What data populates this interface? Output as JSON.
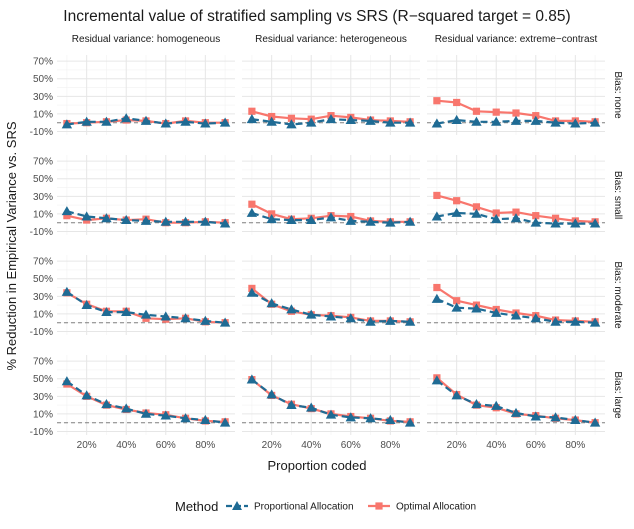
{
  "chart_data": {
    "type": "line",
    "title": "Incremental value of stratified sampling vs SRS (R−squared target = 0.85)",
    "xlabel": "Proportion coded",
    "ylabel": "% Reduction in Empirical Variance vs. SRS",
    "x": [
      0.1,
      0.2,
      0.3,
      0.4,
      0.5,
      0.6,
      0.7,
      0.8,
      0.9
    ],
    "x_ticks": [
      {
        "value": 0.2,
        "label": "20%"
      },
      {
        "value": 0.4,
        "label": "40%"
      },
      {
        "value": 0.6,
        "label": "60%"
      },
      {
        "value": 0.8,
        "label": "80%"
      }
    ],
    "y_ticks": [
      {
        "value": -10,
        "label": "-10%"
      },
      {
        "value": 10,
        "label": "10%"
      },
      {
        "value": 30,
        "label": "30%"
      },
      {
        "value": 50,
        "label": "50%"
      },
      {
        "value": 70,
        "label": "70%"
      }
    ],
    "xlim": [
      0.05,
      0.95
    ],
    "ylim": [
      -14,
      77
    ],
    "reference_line": 0,
    "grid": true,
    "column_strips": [
      "Residual variance: homogeneous",
      "Residual variance: heterogeneous",
      "Residual variance: extreme−contrast"
    ],
    "row_strips": [
      "Bias: none",
      "Bias: small",
      "Bias: moderate",
      "Bias: large"
    ],
    "legend": {
      "title": "Method",
      "position": "bottom",
      "items": [
        {
          "label": "Proportional Allocation",
          "color": "#1f6b94",
          "shape": "triangle",
          "linetype": "dashed"
        },
        {
          "label": "Optimal Allocation",
          "color": "#f8766d",
          "shape": "square",
          "linetype": "solid"
        }
      ]
    },
    "panels": [
      {
        "row": 0,
        "col": 0,
        "series": [
          {
            "values": [
              -2,
              1,
              1,
              5,
              2,
              -1,
              1,
              -1,
              0
            ]
          },
          {
            "values": [
              -1,
              0,
              1,
              3,
              2,
              -1,
              2,
              0,
              0
            ]
          }
        ]
      },
      {
        "row": 0,
        "col": 1,
        "series": [
          {
            "values": [
              4,
              1,
              -2,
              0,
              4,
              3,
              2,
              0,
              0
            ]
          },
          {
            "values": [
              13,
              7,
              5,
              4,
              8,
              6,
              3,
              2,
              1
            ]
          }
        ]
      },
      {
        "row": 0,
        "col": 2,
        "series": [
          {
            "values": [
              -1,
              3,
              1,
              1,
              2,
              2,
              0,
              -1,
              0
            ]
          },
          {
            "values": [
              25,
              23,
              13,
              12,
              11,
              8,
              2,
              2,
              1
            ]
          }
        ]
      },
      {
        "row": 1,
        "col": 0,
        "series": [
          {
            "values": [
              13,
              7,
              5,
              3,
              2,
              1,
              1,
              1,
              -1
            ]
          },
          {
            "values": [
              8,
              3,
              5,
              3,
              4,
              0,
              0,
              1,
              0
            ]
          }
        ]
      },
      {
        "row": 1,
        "col": 1,
        "series": [
          {
            "values": [
              11,
              4,
              3,
              3,
              6,
              2,
              1,
              0,
              1
            ]
          },
          {
            "values": [
              21,
              10,
              4,
              5,
              8,
              7,
              2,
              1,
              1
            ]
          }
        ]
      },
      {
        "row": 1,
        "col": 2,
        "series": [
          {
            "values": [
              7,
              11,
              10,
              4,
              5,
              0,
              -1,
              -1,
              -1
            ]
          },
          {
            "values": [
              31,
              25,
              18,
              11,
              12,
              8,
              5,
              2,
              1
            ]
          }
        ]
      },
      {
        "row": 2,
        "col": 0,
        "series": [
          {
            "values": [
              35,
              20,
              12,
              12,
              9,
              7,
              5,
              2,
              0
            ]
          },
          {
            "values": [
              34,
              21,
              13,
              13,
              5,
              4,
              5,
              1,
              0
            ]
          }
        ]
      },
      {
        "row": 2,
        "col": 1,
        "series": [
          {
            "values": [
              34,
              22,
              15,
              9,
              7,
              5,
              1,
              2,
              1
            ]
          },
          {
            "values": [
              39,
              21,
              13,
              9,
              8,
              6,
              2,
              2,
              1
            ]
          }
        ]
      },
      {
        "row": 2,
        "col": 2,
        "series": [
          {
            "values": [
              27,
              17,
              16,
              11,
              8,
              5,
              1,
              1,
              0
            ]
          },
          {
            "values": [
              40,
              25,
              20,
              15,
              11,
              8,
              3,
              2,
              1
            ]
          }
        ]
      },
      {
        "row": 3,
        "col": 0,
        "series": [
          {
            "values": [
              47,
              31,
              21,
              16,
              10,
              8,
              5,
              3,
              0
            ]
          },
          {
            "values": [
              44,
              30,
              20,
              15,
              11,
              9,
              5,
              2,
              1
            ]
          }
        ]
      },
      {
        "row": 3,
        "col": 1,
        "series": [
          {
            "values": [
              49,
              32,
              20,
              17,
              9,
              6,
              5,
              3,
              0
            ]
          },
          {
            "values": [
              49,
              31,
              21,
              16,
              10,
              7,
              5,
              2,
              1
            ]
          }
        ]
      },
      {
        "row": 3,
        "col": 2,
        "series": [
          {
            "values": [
              48,
              31,
              21,
              19,
              11,
              7,
              6,
              3,
              0
            ]
          },
          {
            "values": [
              51,
              32,
              20,
              17,
              10,
              8,
              5,
              3,
              0
            ]
          }
        ]
      }
    ]
  }
}
